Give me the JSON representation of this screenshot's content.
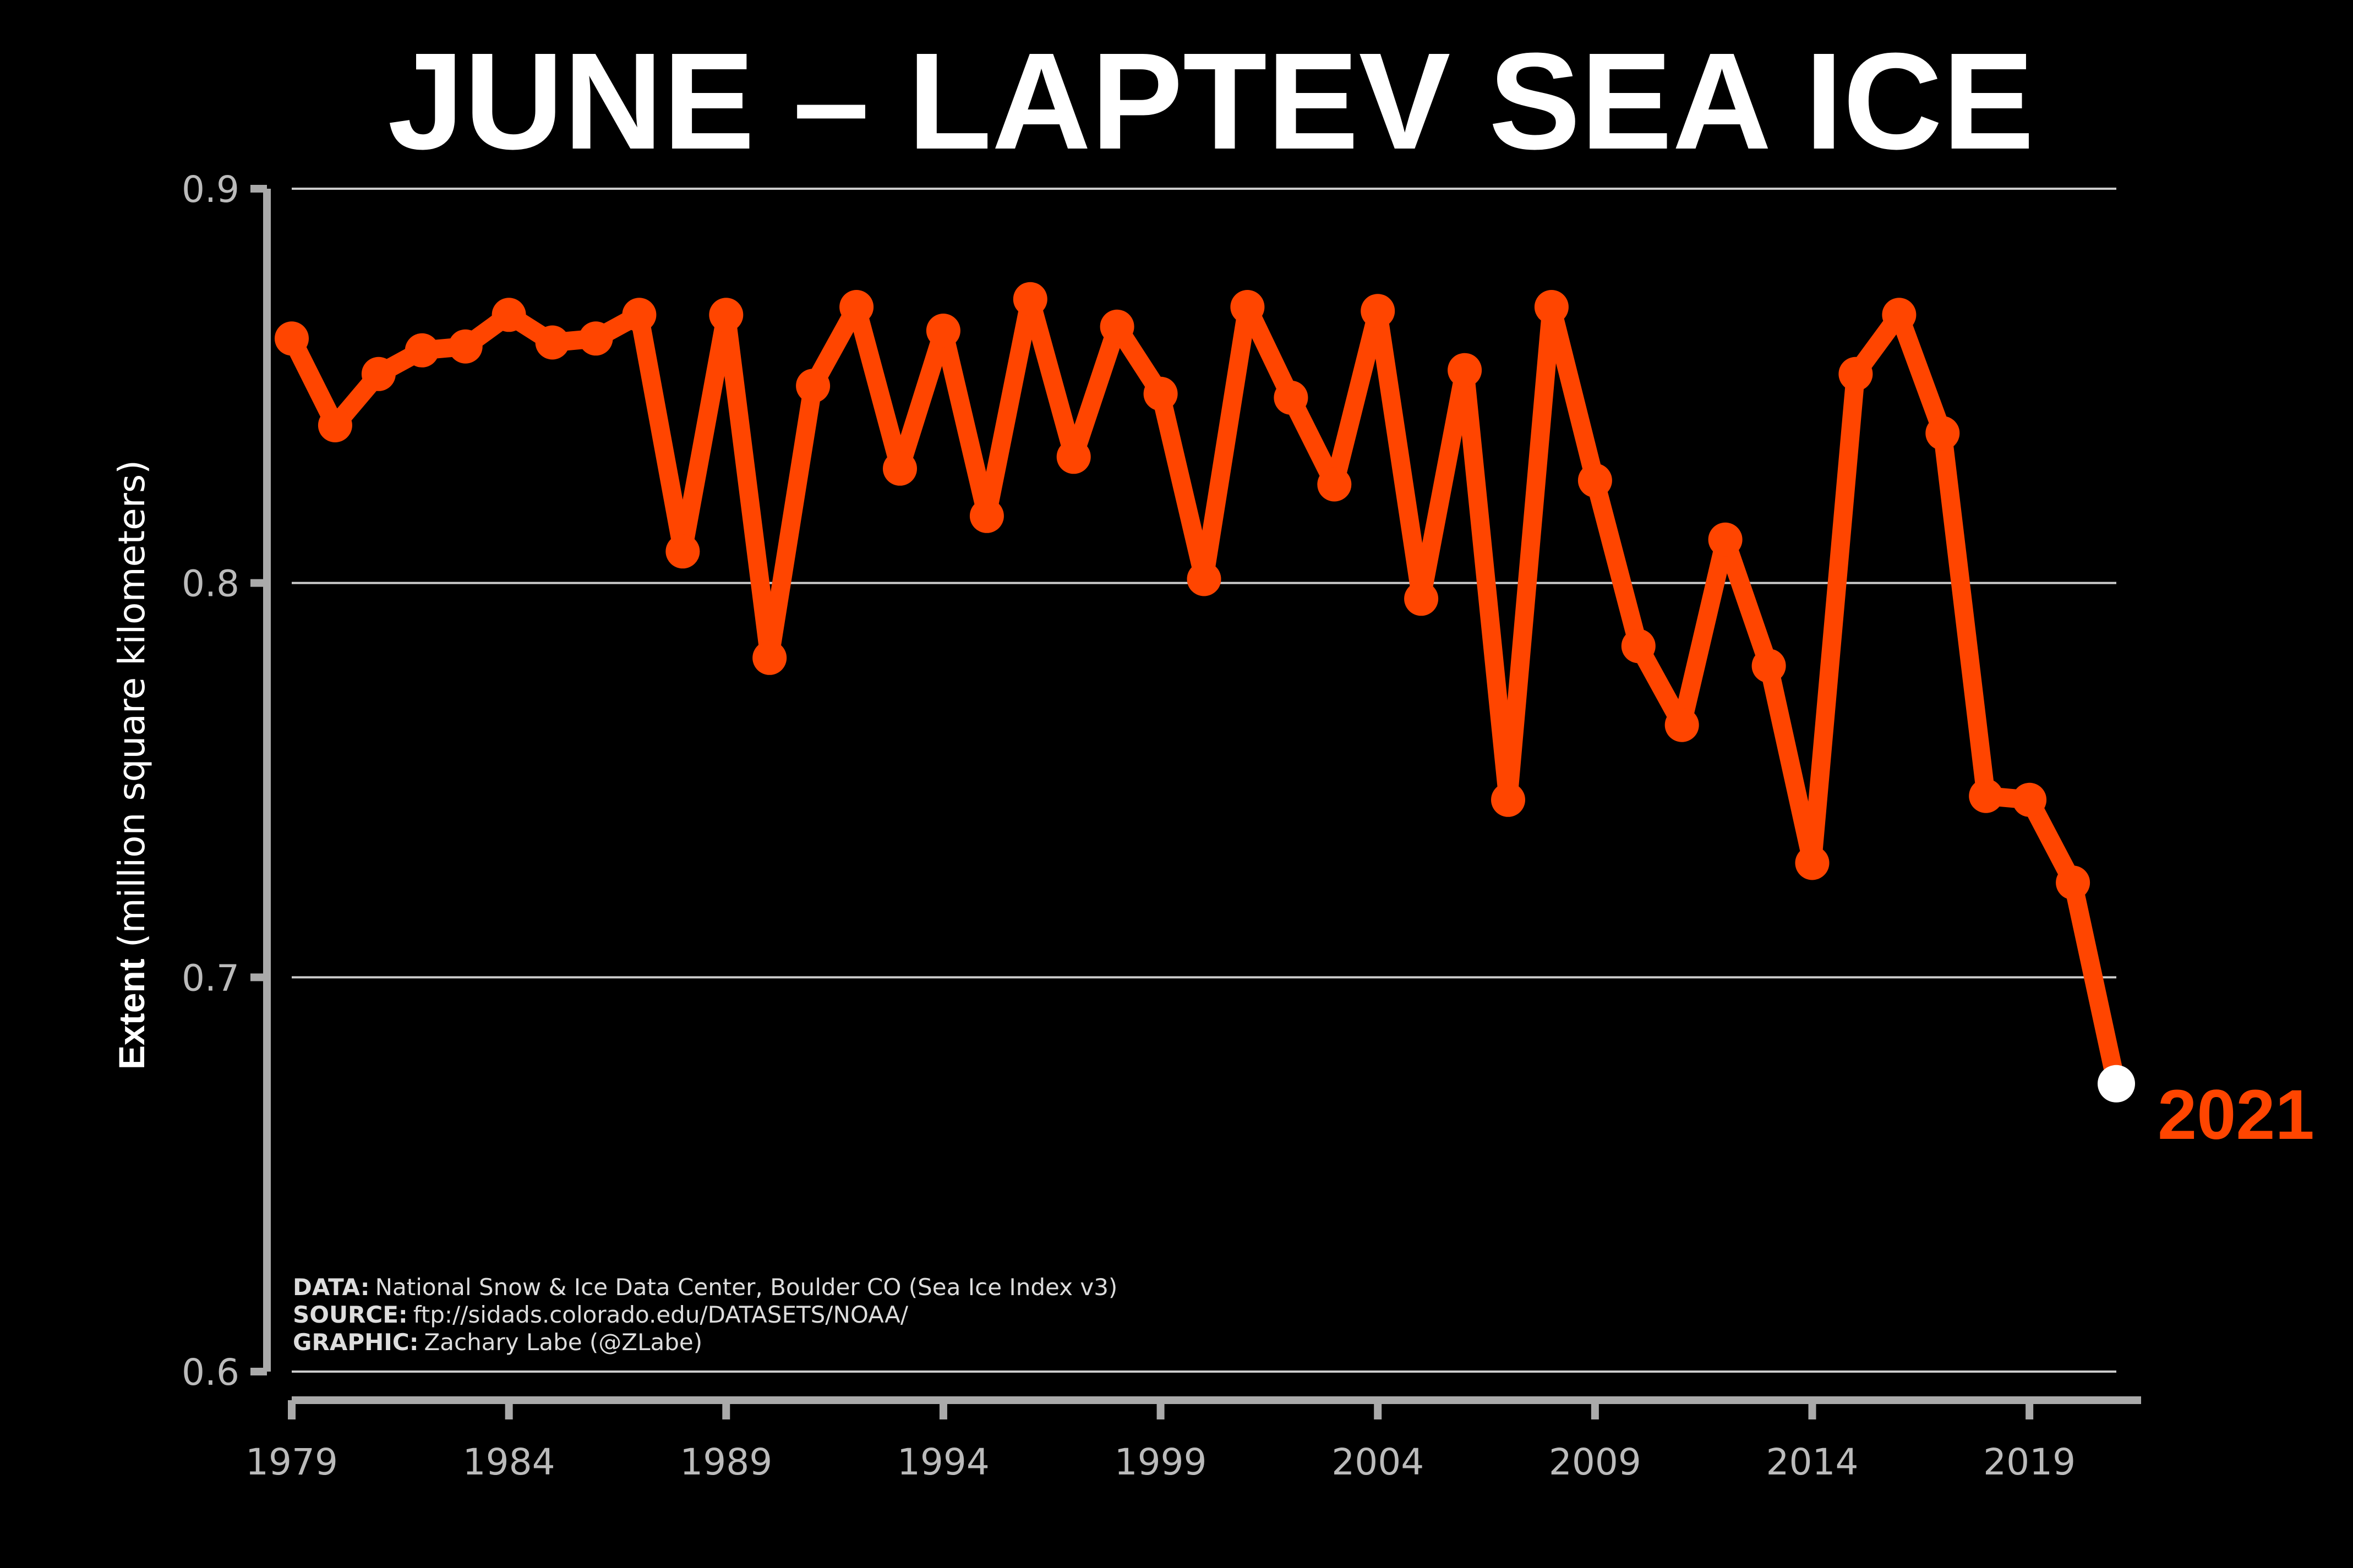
{
  "colors": {
    "background": "#000000",
    "series": "#ff4500",
    "highlight_point": "#ffffff",
    "axis": "#aaaaaa",
    "grid": "#cccccc",
    "text": "#ffffff",
    "tick_text": "#bbbbbb"
  },
  "chart_data": {
    "type": "line",
    "title": "JUNE – LAPTEV SEA ICE",
    "xlabel": "",
    "ylabel_bold": "Extent",
    "ylabel_rest": "(million square kilometers)",
    "ylim": [
      0.6,
      0.9
    ],
    "xlim": [
      1979,
      2021
    ],
    "yticks": [
      "0.6",
      "0.7",
      "0.8",
      "0.9"
    ],
    "xticks": [
      "1979",
      "1984",
      "1989",
      "1994",
      "1999",
      "2004",
      "2009",
      "2014",
      "2019"
    ],
    "grid": "horizontal",
    "series": [
      {
        "x": [
          1979,
          1980,
          1981,
          1982,
          1983,
          1984,
          1985,
          1986,
          1987,
          1988,
          1989,
          1990,
          1991,
          1992,
          1993,
          1994,
          1995,
          1996,
          1997,
          1998,
          1999,
          2000,
          2001,
          2002,
          2003,
          2004,
          2005,
          2006,
          2007,
          2008,
          2009,
          2010,
          2011,
          2012,
          2013,
          2014,
          2015,
          2016,
          2017,
          2018,
          2019,
          2020,
          2021
        ],
        "values": [
          0.862,
          0.84,
          0.853,
          0.859,
          0.86,
          0.868,
          0.861,
          0.862,
          0.868,
          0.808,
          0.868,
          0.781,
          0.85,
          0.87,
          0.829,
          0.864,
          0.817,
          0.872,
          0.832,
          0.865,
          0.848,
          0.801,
          0.87,
          0.847,
          0.825,
          0.869,
          0.796,
          0.854,
          0.745,
          0.87,
          0.826,
          0.784,
          0.764,
          0.811,
          0.779,
          0.729,
          0.853,
          0.868,
          0.838,
          0.746,
          0.745,
          0.724,
          0.673
        ]
      }
    ],
    "highlight_label": "2021",
    "credits": [
      {
        "label": "DATA:",
        "text": "National Snow & Ice Data Center, Boulder CO (Sea Ice Index v3)"
      },
      {
        "label": "SOURCE:",
        "text": "ftp://sidads.colorado.edu/DATASETS/NOAA/"
      },
      {
        "label": "GRAPHIC:",
        "text": "Zachary Labe (@ZLabe)"
      }
    ]
  }
}
